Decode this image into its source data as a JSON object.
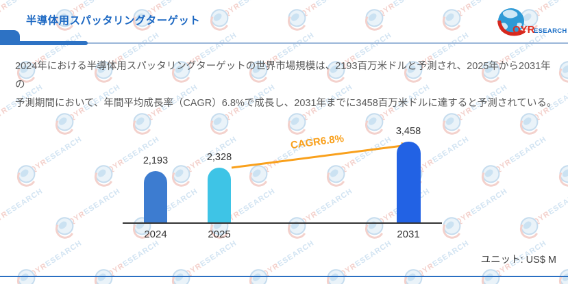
{
  "header": {
    "title": "半導体用スパッタリングターゲット",
    "logo": {
      "text_primary": "QYR",
      "text_secondary": "ESEARCH"
    }
  },
  "summary": {
    "line1": "2024年における半導体用スパッタリングターゲットの世界市場規模は、2193百万米ドルと予測され、2025年から2031年の",
    "line2": "予測期間において、年間平均成長率（CAGR）6.8%で成長し、2031年までに3458百万米ドルに達すると予測されている。"
  },
  "chart_data": {
    "type": "bar",
    "title": "半導体用スパッタリングターゲット",
    "categories": [
      "2024",
      "2025",
      "2031"
    ],
    "values": [
      2193,
      2328,
      3458
    ],
    "value_labels": [
      "2,193",
      "2,328",
      "3,458"
    ],
    "annotation": "CAGR6.8%",
    "unit_label": "ユニット: US$ M",
    "bar_colors": [
      "#3D7CD0",
      "#3EC4E6",
      "#2262E4"
    ],
    "accent_color": "#F9A01B",
    "ylim": [
      0,
      3800
    ],
    "grid": "off",
    "legend": "none"
  },
  "watermark": {
    "text_primary": "QYR",
    "text_secondary": "ESEARCH"
  }
}
